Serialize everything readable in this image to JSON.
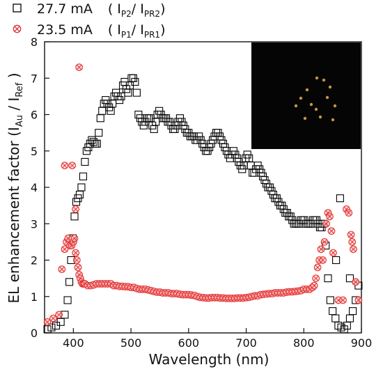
{
  "chart_data": {
    "type": "scatter",
    "xlabel": "Wavelength (nm)",
    "ylabel_parts": [
      "EL enhancement factor  (I",
      "Au",
      " / I",
      "Ref",
      " )"
    ],
    "xlim": [
      350,
      900
    ],
    "ylim": [
      0,
      8
    ],
    "x_ticks": [
      400,
      500,
      600,
      700,
      800,
      900
    ],
    "y_ticks": [
      0,
      1,
      2,
      3,
      4,
      5,
      6,
      7,
      8
    ],
    "grid": false,
    "legend_placement": "top-left",
    "inset": "dark photo of scattered emission spots, top-right",
    "series": [
      {
        "legend_parts": [
          "27.7 mA",
          "( I",
          "P2",
          "/ I",
          "PR2",
          ")"
        ],
        "marker": "open-square",
        "color": "#000000",
        "x": [
          355,
          362,
          370,
          378,
          385,
          390,
          393,
          396,
          399,
          402,
          405,
          408,
          411,
          414,
          417,
          420,
          423,
          426,
          429,
          432,
          435,
          438,
          441,
          444,
          447,
          450,
          453,
          456,
          459,
          462,
          465,
          468,
          471,
          474,
          477,
          480,
          483,
          486,
          489,
          492,
          495,
          498,
          501,
          504,
          507,
          510,
          513,
          516,
          519,
          522,
          525,
          528,
          531,
          534,
          537,
          540,
          543,
          546,
          549,
          552,
          555,
          558,
          561,
          564,
          567,
          570,
          573,
          576,
          579,
          582,
          585,
          588,
          591,
          594,
          597,
          600,
          603,
          606,
          609,
          612,
          615,
          618,
          621,
          624,
          627,
          630,
          633,
          636,
          639,
          642,
          645,
          648,
          651,
          654,
          657,
          660,
          663,
          666,
          669,
          672,
          675,
          678,
          681,
          684,
          687,
          690,
          693,
          696,
          699,
          702,
          705,
          708,
          711,
          714,
          717,
          720,
          723,
          726,
          729,
          732,
          735,
          738,
          741,
          744,
          747,
          750,
          753,
          756,
          759,
          762,
          765,
          768,
          771,
          774,
          777,
          780,
          783,
          786,
          789,
          792,
          795,
          798,
          801,
          804,
          807,
          810,
          813,
          816,
          819,
          822,
          825,
          828,
          831,
          834,
          838,
          842,
          846,
          850,
          855,
          860,
          865,
          870,
          875,
          880,
          885,
          890,
          895
        ],
        "y": [
          0.1,
          0.15,
          0.2,
          0.3,
          0.5,
          0.9,
          1.4,
          2.0,
          2.6,
          3.2,
          3.6,
          3.7,
          3.8,
          4.0,
          4.3,
          4.7,
          5.0,
          5.1,
          5.2,
          5.3,
          5.25,
          5.2,
          5.2,
          5.5,
          5.9,
          6.1,
          6.3,
          6.4,
          6.3,
          6.2,
          6.1,
          6.3,
          6.5,
          6.6,
          6.5,
          6.4,
          6.5,
          6.8,
          6.9,
          6.7,
          6.6,
          6.8,
          7.0,
          7.0,
          6.9,
          6.6,
          6.0,
          5.9,
          5.8,
          5.7,
          5.8,
          5.9,
          5.9,
          5.9,
          5.7,
          5.6,
          5.8,
          6.0,
          6.1,
          6.0,
          5.9,
          5.9,
          5.9,
          5.8,
          5.8,
          5.7,
          5.6,
          5.6,
          5.7,
          5.8,
          5.9,
          5.8,
          5.7,
          5.6,
          5.5,
          5.5,
          5.4,
          5.4,
          5.4,
          5.3,
          5.3,
          5.4,
          5.3,
          5.2,
          5.1,
          5.0,
          5.0,
          5.1,
          5.2,
          5.3,
          5.4,
          5.5,
          5.5,
          5.4,
          5.3,
          5.2,
          5.1,
          5.0,
          4.9,
          4.8,
          4.9,
          5.0,
          4.9,
          4.8,
          4.7,
          4.6,
          4.5,
          4.6,
          4.8,
          4.9,
          4.8,
          4.6,
          4.4,
          4.4,
          4.5,
          4.6,
          4.5,
          4.4,
          4.3,
          4.2,
          4.1,
          4.0,
          4.0,
          3.9,
          3.8,
          3.7,
          3.7,
          3.6,
          3.5,
          3.5,
          3.4,
          3.3,
          3.3,
          3.2,
          3.2,
          3.1,
          3.0,
          3.0,
          3.0,
          3.0,
          3.1,
          3.1,
          3.1,
          3.0,
          3.0,
          3.0,
          3.0,
          3.1,
          3.1,
          3.1,
          3.0,
          2.9,
          2.9,
          3.0,
          2.4,
          1.5,
          0.9,
          0.6,
          0.4,
          0.2,
          0.15,
          0.1,
          0.2,
          0.4,
          0.6,
          0.9,
          1.3
        ]
      },
      {
        "legend_parts": [
          "23.5 mA",
          "( I",
          "P1",
          "/ I",
          "PR1",
          ")"
        ],
        "marker": "circle-cross",
        "color": "#e53030",
        "x": [
          355,
          365,
          375,
          380,
          385,
          388,
          391,
          394,
          397,
          400,
          402,
          404,
          406,
          408,
          410,
          412,
          414,
          416,
          418,
          420,
          425,
          430,
          435,
          440,
          445,
          450,
          455,
          460,
          465,
          470,
          475,
          480,
          485,
          490,
          495,
          500,
          505,
          510,
          515,
          520,
          525,
          530,
          535,
          540,
          545,
          550,
          555,
          560,
          565,
          570,
          575,
          580,
          585,
          590,
          595,
          600,
          605,
          610,
          615,
          620,
          625,
          630,
          635,
          640,
          645,
          650,
          655,
          660,
          665,
          670,
          675,
          680,
          685,
          690,
          695,
          700,
          705,
          710,
          715,
          720,
          725,
          730,
          735,
          740,
          745,
          750,
          755,
          760,
          765,
          770,
          775,
          780,
          785,
          790,
          795,
          800,
          805,
          810,
          815,
          818,
          821,
          824,
          827,
          830,
          833,
          836,
          839,
          842,
          845,
          848,
          851,
          860,
          868,
          874,
          878,
          882,
          886,
          890,
          895
        ],
        "y": [
          0.3,
          0.4,
          0.5,
          1.75,
          2.3,
          2.5,
          2.6,
          2.4,
          2.4,
          2.5,
          2.6,
          2.2,
          2.0,
          1.8,
          1.6,
          1.5,
          1.4,
          1.35,
          1.35,
          1.35,
          1.3,
          1.3,
          1.32,
          1.35,
          1.35,
          1.35,
          1.35,
          1.35,
          1.35,
          1.3,
          1.3,
          1.28,
          1.28,
          1.27,
          1.27,
          1.25,
          1.25,
          1.22,
          1.2,
          1.2,
          1.2,
          1.18,
          1.16,
          1.14,
          1.12,
          1.12,
          1.1,
          1.1,
          1.1,
          1.08,
          1.08,
          1.08,
          1.06,
          1.05,
          1.05,
          1.05,
          1.04,
          1.03,
          1.0,
          0.98,
          0.97,
          0.96,
          0.96,
          0.97,
          0.97,
          0.97,
          0.96,
          0.96,
          0.95,
          0.95,
          0.95,
          0.95,
          0.96,
          0.96,
          0.96,
          0.97,
          0.98,
          1.0,
          1.02,
          1.02,
          1.05,
          1.06,
          1.07,
          1.08,
          1.08,
          1.1,
          1.1,
          1.1,
          1.1,
          1.12,
          1.13,
          1.13,
          1.14,
          1.15,
          1.16,
          1.2,
          1.2,
          1.2,
          1.25,
          1.3,
          1.5,
          1.8,
          2.0,
          2.3,
          2.0,
          2.5,
          3.0,
          3.3,
          3.2,
          2.8,
          2.2,
          0.9,
          0.9,
          3.4,
          3.3,
          2.7,
          2.3,
          1.4,
          0.9
        ]
      }
    ],
    "extra_points": [
      {
        "series": 1,
        "x": 398,
        "y": 4.6
      },
      {
        "series": 1,
        "x": 410,
        "y": 7.3
      },
      {
        "series": 1,
        "x": 385,
        "y": 4.6
      },
      {
        "series": 1,
        "x": 404,
        "y": 3.4
      },
      {
        "series": 0,
        "x": 863,
        "y": 3.7
      },
      {
        "series": 0,
        "x": 856,
        "y": 2.0
      },
      {
        "series": 0,
        "x": 880,
        "y": 1.5
      },
      {
        "series": 1,
        "x": 890,
        "y": 1.4
      },
      {
        "series": 1,
        "x": 884,
        "y": 2.5
      }
    ]
  }
}
